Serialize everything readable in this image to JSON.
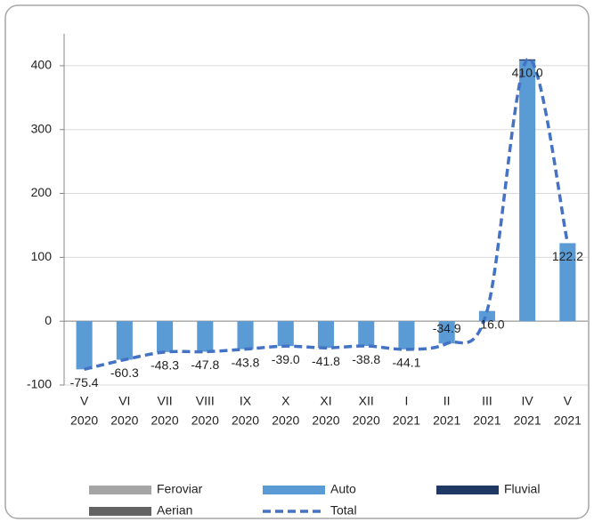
{
  "chart_data": {
    "type": "bar",
    "categories": [
      [
        "V",
        "2020"
      ],
      [
        "VI",
        "2020"
      ],
      [
        "VII",
        "2020"
      ],
      [
        "VIII",
        "2020"
      ],
      [
        "IX",
        "2020"
      ],
      [
        "X",
        "2020"
      ],
      [
        "XI",
        "2020"
      ],
      [
        "XII",
        "2020"
      ],
      [
        "I",
        "2021"
      ],
      [
        "II",
        "2021"
      ],
      [
        "III",
        "2021"
      ],
      [
        "IV",
        "2021"
      ],
      [
        "V",
        "2021"
      ]
    ],
    "series": [
      {
        "name": "Feroviar",
        "color": "#a5a5a5",
        "values": [
          0,
          0,
          0,
          0,
          0,
          0,
          0,
          0,
          0,
          0,
          0,
          0,
          0
        ]
      },
      {
        "name": "Auto",
        "color": "#5b9bd5",
        "values": [
          -75.4,
          -60.3,
          -48.3,
          -47.8,
          -43.8,
          -39.0,
          -41.8,
          -38.8,
          -44.1,
          -34.9,
          16.0,
          408,
          122.2
        ]
      },
      {
        "name": "Fluvial",
        "color": "#1f3864",
        "values": [
          0,
          0,
          0,
          0,
          0,
          0,
          0,
          0,
          0,
          0,
          0,
          2,
          0
        ]
      },
      {
        "name": "Aerian",
        "color": "#636363",
        "values": [
          0,
          0,
          0,
          0,
          0,
          0,
          0,
          0,
          0,
          0,
          0,
          0,
          0
        ]
      },
      {
        "name": "Total",
        "type": "line",
        "color": "#4472c4",
        "values": [
          -75.4,
          -60.3,
          -48.3,
          -47.8,
          -43.8,
          -39.0,
          -41.8,
          -38.8,
          -44.1,
          -34.9,
          16.0,
          410.0,
          122.2
        ],
        "value_labels": [
          "-75.4",
          "-60.3",
          "-48.3",
          "-47.8",
          "-43.8",
          "-39.0",
          "-41.8",
          "-38.8",
          "-44.1",
          "-34.9",
          "16.0",
          "410.0",
          "122.2"
        ]
      }
    ],
    "ylim": [
      -100,
      450
    ],
    "yticks": [
      -100,
      0,
      100,
      200,
      300,
      400
    ],
    "grid": true,
    "legend": "bottom"
  }
}
